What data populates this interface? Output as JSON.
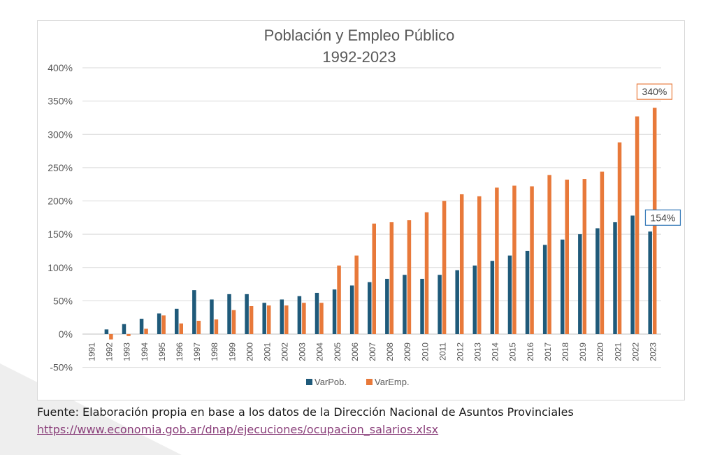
{
  "chart_data": {
    "type": "bar",
    "title": "Población y Empleo Público",
    "subtitle": "1992-2023",
    "categories": [
      "1991",
      "1992",
      "1993",
      "1994",
      "1995",
      "1996",
      "1997",
      "1998",
      "1999",
      "2000",
      "2001",
      "2002",
      "2003",
      "2004",
      "2005",
      "2006",
      "2007",
      "2008",
      "2009",
      "2010",
      "2011",
      "2012",
      "2013",
      "2014",
      "2015",
      "2016",
      "2017",
      "2018",
      "2019",
      "2020",
      "2021",
      "2022",
      "2023"
    ],
    "series": [
      {
        "name": "VarPob.",
        "color": "#1f5a7a",
        "values": [
          0,
          7,
          15,
          23,
          31,
          38,
          66,
          52,
          60,
          60,
          47,
          52,
          57,
          62,
          67,
          73,
          78,
          83,
          89,
          83,
          89,
          96,
          103,
          110,
          118,
          125,
          134,
          142,
          150,
          159,
          168,
          178,
          154
        ]
      },
      {
        "name": "VarEmp.",
        "color": "#e8793a",
        "values": [
          0,
          -8,
          -3,
          8,
          28,
          16,
          20,
          22,
          36,
          42,
          43,
          43,
          47,
          47,
          103,
          118,
          166,
          168,
          171,
          183,
          200,
          210,
          207,
          220,
          223,
          222,
          239,
          232,
          233,
          244,
          288,
          327,
          340
        ]
      }
    ],
    "ylim": [
      -50,
      400
    ],
    "yticks": [
      -50,
      0,
      50,
      100,
      150,
      200,
      250,
      300,
      350,
      400
    ],
    "ytick_labels": [
      "-50%",
      "0%",
      "50%",
      "100%",
      "150%",
      "200%",
      "250%",
      "300%",
      "350%",
      "400%"
    ],
    "grid": true,
    "legend_position": "bottom",
    "annotations": [
      {
        "text": "340%",
        "series": "VarEmp.",
        "category": "2023",
        "color": "#e8793a"
      },
      {
        "text": "154%",
        "series": "VarPob.",
        "category": "2023",
        "color": "#2e75b6"
      }
    ]
  },
  "footer": {
    "source": "Fuente: Elaboración propia en base a los datos de la Dirección Nacional de Asuntos Provinciales",
    "link": "https://www.economia.gob.ar/dnap/ejecuciones/ocupacion_salarios.xlsx"
  }
}
